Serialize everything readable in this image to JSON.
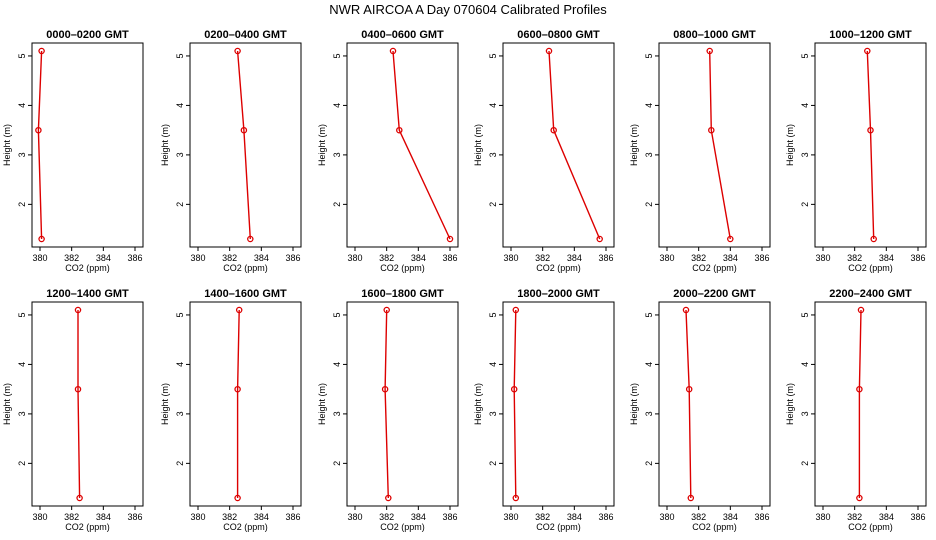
{
  "title": "NWR AIRCOA A  Day 070604  Calibrated Profiles",
  "colors": {
    "profile": "#dd0000",
    "axis": "#000000"
  },
  "chart_data": [
    {
      "type": "line",
      "title": "0000–0200 GMT",
      "xlabel": "CO2 (ppm)",
      "ylabel": "Height (m)",
      "xlim": [
        380,
        386
      ],
      "ylim": [
        1.3,
        5.1
      ],
      "xticks": [
        "380",
        "382",
        "384",
        "386"
      ],
      "yticks": [
        "2",
        "3",
        "4",
        "5"
      ],
      "points": [
        {
          "x": 380.1,
          "y": 5.1
        },
        {
          "x": 379.9,
          "y": 3.5
        },
        {
          "x": 380.1,
          "y": 1.3
        }
      ]
    },
    {
      "type": "line",
      "title": "0200–0400 GMT",
      "xlabel": "CO2 (ppm)",
      "ylabel": "Height (m)",
      "xlim": [
        380,
        386
      ],
      "ylim": [
        1.3,
        5.1
      ],
      "xticks": [
        "380",
        "382",
        "384",
        "386"
      ],
      "yticks": [
        "2",
        "3",
        "4",
        "5"
      ],
      "points": [
        {
          "x": 382.5,
          "y": 5.1
        },
        {
          "x": 382.9,
          "y": 3.5
        },
        {
          "x": 383.3,
          "y": 1.3
        }
      ]
    },
    {
      "type": "line",
      "title": "0400–0600 GMT",
      "xlabel": "CO2 (ppm)",
      "ylabel": "Height (m)",
      "xlim": [
        380,
        386
      ],
      "ylim": [
        1.3,
        5.1
      ],
      "xticks": [
        "380",
        "382",
        "384",
        "386"
      ],
      "yticks": [
        "2",
        "3",
        "4",
        "5"
      ],
      "points": [
        {
          "x": 382.4,
          "y": 5.1
        },
        {
          "x": 382.8,
          "y": 3.5
        },
        {
          "x": 386.0,
          "y": 1.3
        }
      ]
    },
    {
      "type": "line",
      "title": "0600–0800 GMT",
      "xlabel": "CO2 (ppm)",
      "ylabel": "Height (m)",
      "xlim": [
        380,
        386
      ],
      "ylim": [
        1.3,
        5.1
      ],
      "xticks": [
        "380",
        "382",
        "384",
        "386"
      ],
      "yticks": [
        "2",
        "3",
        "4",
        "5"
      ],
      "points": [
        {
          "x": 382.4,
          "y": 5.1
        },
        {
          "x": 382.7,
          "y": 3.5
        },
        {
          "x": 385.6,
          "y": 1.3
        }
      ]
    },
    {
      "type": "line",
      "title": "0800–1000 GMT",
      "xlabel": "CO2 (ppm)",
      "ylabel": "Height (m)",
      "xlim": [
        380,
        386
      ],
      "ylim": [
        1.3,
        5.1
      ],
      "xticks": [
        "380",
        "382",
        "384",
        "386"
      ],
      "yticks": [
        "2",
        "3",
        "4",
        "5"
      ],
      "points": [
        {
          "x": 382.7,
          "y": 5.1
        },
        {
          "x": 382.8,
          "y": 3.5
        },
        {
          "x": 384.0,
          "y": 1.3
        }
      ]
    },
    {
      "type": "line",
      "title": "1000–1200 GMT",
      "xlabel": "CO2 (ppm)",
      "ylabel": "Height (m)",
      "xlim": [
        380,
        386
      ],
      "ylim": [
        1.3,
        5.1
      ],
      "xticks": [
        "380",
        "382",
        "384",
        "386"
      ],
      "yticks": [
        "2",
        "3",
        "4",
        "5"
      ],
      "points": [
        {
          "x": 382.8,
          "y": 5.1
        },
        {
          "x": 383.0,
          "y": 3.5
        },
        {
          "x": 383.2,
          "y": 1.3
        }
      ]
    },
    {
      "type": "line",
      "title": "1200–1400 GMT",
      "xlabel": "CO2 (ppm)",
      "ylabel": "Height (m)",
      "xlim": [
        380,
        386
      ],
      "ylim": [
        1.3,
        5.1
      ],
      "xticks": [
        "380",
        "382",
        "384",
        "386"
      ],
      "yticks": [
        "2",
        "3",
        "4",
        "5"
      ],
      "points": [
        {
          "x": 382.4,
          "y": 5.1
        },
        {
          "x": 382.4,
          "y": 3.5
        },
        {
          "x": 382.5,
          "y": 1.3
        }
      ]
    },
    {
      "type": "line",
      "title": "1400–1600 GMT",
      "xlabel": "CO2 (ppm)",
      "ylabel": "Height (m)",
      "xlim": [
        380,
        386
      ],
      "ylim": [
        1.3,
        5.1
      ],
      "xticks": [
        "380",
        "382",
        "384",
        "386"
      ],
      "yticks": [
        "2",
        "3",
        "4",
        "5"
      ],
      "points": [
        {
          "x": 382.6,
          "y": 5.1
        },
        {
          "x": 382.5,
          "y": 3.5
        },
        {
          "x": 382.5,
          "y": 1.3
        }
      ]
    },
    {
      "type": "line",
      "title": "1600–1800 GMT",
      "xlabel": "CO2 (ppm)",
      "ylabel": "Height (m)",
      "xlim": [
        380,
        386
      ],
      "ylim": [
        1.3,
        5.1
      ],
      "xticks": [
        "380",
        "382",
        "384",
        "386"
      ],
      "yticks": [
        "2",
        "3",
        "4",
        "5"
      ],
      "points": [
        {
          "x": 382.0,
          "y": 5.1
        },
        {
          "x": 381.9,
          "y": 3.5
        },
        {
          "x": 382.1,
          "y": 1.3
        }
      ]
    },
    {
      "type": "line",
      "title": "1800–2000 GMT",
      "xlabel": "CO2 (ppm)",
      "ylabel": "Height (m)",
      "xlim": [
        380,
        386
      ],
      "ylim": [
        1.3,
        5.1
      ],
      "xticks": [
        "380",
        "382",
        "384",
        "386"
      ],
      "yticks": [
        "2",
        "3",
        "4",
        "5"
      ],
      "points": [
        {
          "x": 380.3,
          "y": 5.1
        },
        {
          "x": 380.2,
          "y": 3.5
        },
        {
          "x": 380.3,
          "y": 1.3
        }
      ]
    },
    {
      "type": "line",
      "title": "2000–2200 GMT",
      "xlabel": "CO2 (ppm)",
      "ylabel": "Height (m)",
      "xlim": [
        380,
        386
      ],
      "ylim": [
        1.3,
        5.1
      ],
      "xticks": [
        "380",
        "382",
        "384",
        "386"
      ],
      "yticks": [
        "2",
        "3",
        "4",
        "5"
      ],
      "points": [
        {
          "x": 381.2,
          "y": 5.1
        },
        {
          "x": 381.4,
          "y": 3.5
        },
        {
          "x": 381.5,
          "y": 1.3
        }
      ]
    },
    {
      "type": "line",
      "title": "2200–2400 GMT",
      "xlabel": "CO2 (ppm)",
      "ylabel": "Height (m)",
      "xlim": [
        380,
        386
      ],
      "ylim": [
        1.3,
        5.1
      ],
      "xticks": [
        "380",
        "382",
        "384",
        "386"
      ],
      "yticks": [
        "2",
        "3",
        "4",
        "5"
      ],
      "points": [
        {
          "x": 382.4,
          "y": 5.1
        },
        {
          "x": 382.3,
          "y": 3.5
        },
        {
          "x": 382.3,
          "y": 1.3
        }
      ]
    }
  ]
}
